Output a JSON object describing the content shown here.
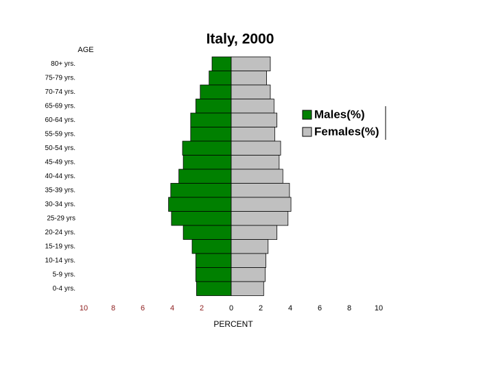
{
  "chart_data": {
    "type": "pyramid",
    "title": "Italy, 2000",
    "y_label": "AGE",
    "x_label": "PERCENT",
    "categories": [
      "80+ yrs.",
      "75-79 yrs.",
      "70-74 yrs.",
      "65-69 yrs.",
      "60-64 yrs.",
      "55-59 yrs.",
      "50-54 yrs.",
      "45-49 yrs.",
      "40-44 yrs.",
      "35-39 yrs.",
      "30-34 yrs.",
      "25-29 yrs",
      "20-24 yrs.",
      "15-19 yrs.",
      "10-14 yrs.",
      "5-9 yrs.",
      "0-4 yrs."
    ],
    "series": [
      {
        "name": "Males(%)",
        "color": "#008000",
        "values": [
          1.3,
          1.5,
          2.1,
          2.4,
          2.75,
          2.75,
          3.3,
          3.25,
          3.55,
          4.1,
          4.25,
          4.05,
          3.25,
          2.65,
          2.4,
          2.4,
          2.35
        ]
      },
      {
        "name": "Females(%)",
        "color": "#c0c0c0",
        "values": [
          2.65,
          2.4,
          2.65,
          2.9,
          3.1,
          2.95,
          3.35,
          3.25,
          3.5,
          3.95,
          4.05,
          3.85,
          3.1,
          2.5,
          2.35,
          2.3,
          2.2
        ]
      }
    ],
    "xlim": [
      -10,
      10
    ],
    "xticks": [
      {
        "value": -10,
        "label": "10"
      },
      {
        "value": -8,
        "label": "8"
      },
      {
        "value": -6,
        "label": "6"
      },
      {
        "value": -4,
        "label": "4"
      },
      {
        "value": -2,
        "label": "2"
      },
      0,
      2,
      4,
      6,
      8,
      10
    ]
  }
}
